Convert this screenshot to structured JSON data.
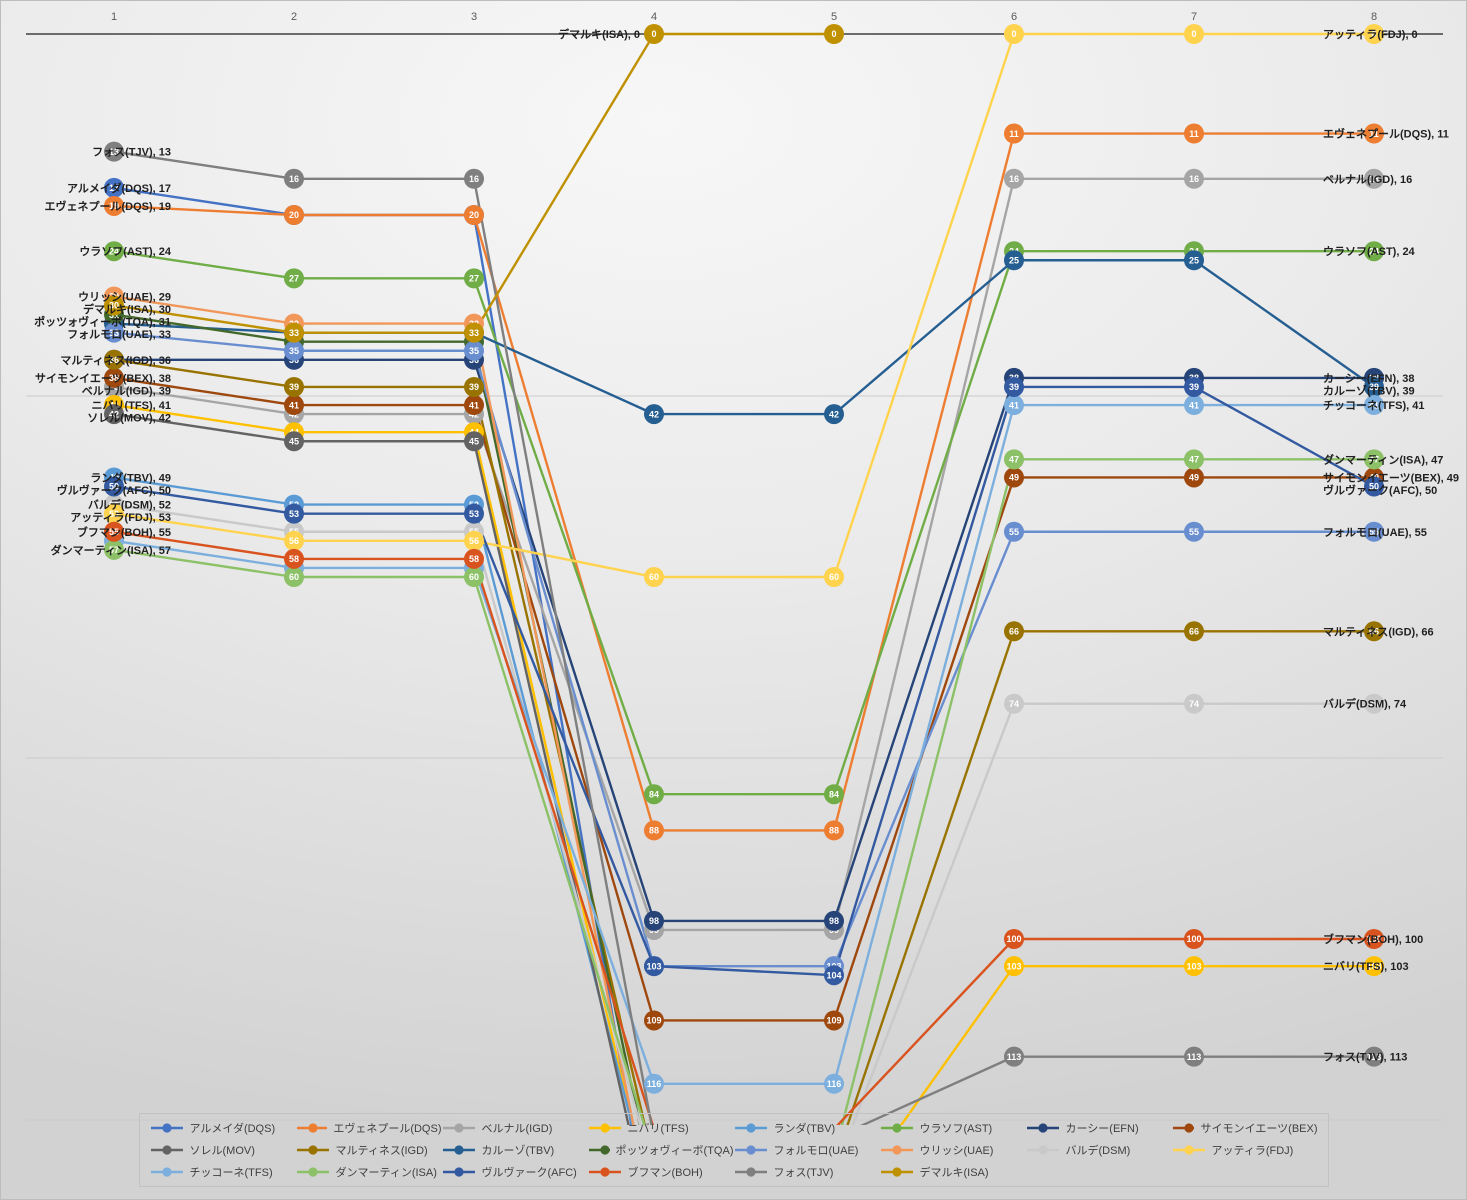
{
  "chart_data": {
    "type": "line",
    "title": "",
    "x_axis": {
      "ticks": [
        "1",
        "2",
        "3",
        "4",
        "5",
        "6",
        "7",
        "8"
      ]
    },
    "y_axis": {
      "min": 0,
      "max": 120,
      "gridline_values": [
        0,
        40,
        80,
        120
      ],
      "inverted": true,
      "grid": true
    },
    "legend_position": "bottom",
    "leader_label": {
      "series": "デマルキ(ISA)",
      "stage": 4,
      "text": "デマルキ(ISA), 0"
    },
    "series": [
      {
        "name": "アルメイダ(DQS)",
        "color": "#4472C4",
        "left_label": true,
        "values": [
          17,
          20,
          20,
          135,
          null,
          null,
          null,
          null
        ]
      },
      {
        "name": "エヴェネプール(DQS)",
        "color": "#ED7D31",
        "left_label": true,
        "values": [
          19,
          20,
          20,
          88,
          88,
          11,
          11,
          11
        ]
      },
      {
        "name": "ベルナル(IGD)",
        "color": "#A5A5A5",
        "left_label": true,
        "values": [
          39,
          42,
          42,
          99,
          99,
          16,
          16,
          16
        ]
      },
      {
        "name": "ニバリ(TFS)",
        "color": "#FFC000",
        "left_label": true,
        "values": [
          41,
          44,
          44,
          131,
          131,
          103,
          103,
          103
        ]
      },
      {
        "name": "ランダ(TBV)",
        "color": "#5B9BD5",
        "left_label": true,
        "values": [
          49,
          52,
          52,
          130,
          null,
          null,
          null,
          null
        ]
      },
      {
        "name": "ウラソフ(AST)",
        "color": "#70AD47",
        "left_label": true,
        "values": [
          24,
          27,
          27,
          84,
          84,
          24,
          24,
          24
        ]
      },
      {
        "name": "カーシー(EFN)",
        "color": "#264478",
        "left_label": false,
        "values": [
          36,
          36,
          36,
          98,
          98,
          38,
          38,
          38
        ]
      },
      {
        "name": "サイモンイエーツ(BEX)",
        "color": "#9E480E",
        "left_label": true,
        "values": [
          38,
          41,
          41,
          109,
          109,
          49,
          49,
          49
        ]
      },
      {
        "name": "ソレル(MOV)",
        "color": "#636363",
        "left_label": true,
        "values": [
          42,
          45,
          45,
          133,
          null,
          null,
          null,
          null
        ]
      },
      {
        "name": "マルティネス(IGD)",
        "color": "#997300",
        "left_label": true,
        "values": [
          36,
          39,
          39,
          125,
          125,
          66,
          66,
          66
        ]
      },
      {
        "name": "カルーゾ(TBV)",
        "color": "#255E91",
        "left_label": false,
        "values": [
          32,
          33,
          33,
          42,
          42,
          25,
          25,
          39
        ]
      },
      {
        "name": "ポッツォヴィーボ(TQA)",
        "color": "#43682B",
        "left_label": true,
        "values": [
          31,
          34,
          34,
          128,
          null,
          null,
          null,
          null
        ]
      },
      {
        "name": "フォルモロ(UAE)",
        "color": "#698ED0",
        "left_label": true,
        "values": [
          33,
          35,
          35,
          103,
          103,
          55,
          55,
          55
        ]
      },
      {
        "name": "ウリッシ(UAE)",
        "color": "#F1975A",
        "left_label": true,
        "values": [
          29,
          32,
          32,
          132,
          null,
          null,
          null,
          null
        ]
      },
      {
        "name": "バルデ(DSM)",
        "color": "#C9C9C9",
        "left_label": true,
        "values": [
          52,
          55,
          55,
          126,
          126,
          74,
          74,
          74
        ]
      },
      {
        "name": "アッティラ(FDJ)",
        "color": "#FFD34D",
        "left_label": true,
        "values": [
          53,
          56,
          56,
          60,
          60,
          0,
          0,
          0
        ]
      },
      {
        "name": "チッコーネ(TFS)",
        "color": "#7CAFDD",
        "left_label": false,
        "values": [
          56,
          59,
          59,
          116,
          116,
          41,
          41,
          41
        ]
      },
      {
        "name": "ダンマーティン(ISA)",
        "color": "#8CC168",
        "left_label": true,
        "values": [
          57,
          60,
          60,
          124,
          124,
          47,
          47,
          47
        ]
      },
      {
        "name": "ヴルヴァーク(AFC)",
        "color": "#335AA1",
        "left_label": true,
        "values": [
          50,
          53,
          53,
          103,
          104,
          39,
          39,
          50
        ]
      },
      {
        "name": "ブフマン(BOH)",
        "color": "#D9531E",
        "left_label": true,
        "values": [
          55,
          58,
          58,
          121,
          121,
          100,
          100,
          100
        ]
      },
      {
        "name": "フォス(TJV)",
        "color": "#7F7F7F",
        "left_label": true,
        "values": [
          13,
          16,
          16,
          122,
          122,
          113,
          113,
          113
        ]
      },
      {
        "name": "デマルキ(ISA)",
        "color": "#BF9000",
        "left_label": true,
        "values": [
          30,
          33,
          33,
          0,
          0,
          null,
          null,
          null
        ]
      }
    ]
  }
}
